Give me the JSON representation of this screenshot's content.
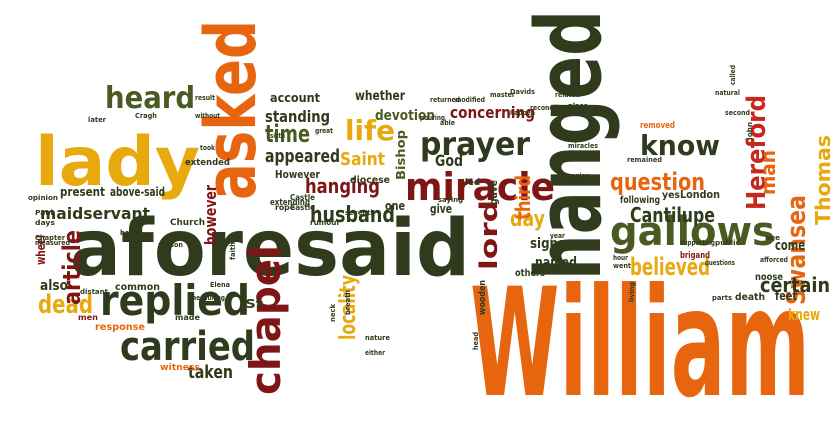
{
  "colors": {
    "orange": "#e8650f",
    "gold": "#e8a90e",
    "dark_green": "#2f3b1c",
    "olive": "#4a5a22",
    "dark_red": "#7e1616",
    "red": "#c8281b",
    "maroon": "#5a1010",
    "background": "#ffffff"
  },
  "words": [
    {
      "text": "William",
      "color": "orange",
      "vertical": false
    },
    {
      "text": "aforesaid",
      "color": "dark_green",
      "vertical": false
    },
    {
      "text": "hanged",
      "color": "dark_green",
      "vertical": true
    },
    {
      "text": "asked",
      "color": "orange",
      "vertical": true
    },
    {
      "text": "lady",
      "color": "gold",
      "vertical": false
    },
    {
      "text": "gallows",
      "color": "olive",
      "vertical": false
    },
    {
      "text": "replied",
      "color": "dark_green",
      "vertical": false
    },
    {
      "text": "carried",
      "color": "dark_green",
      "vertical": false
    },
    {
      "text": "chapel",
      "color": "dark_red",
      "vertical": true
    },
    {
      "text": "prayer",
      "color": "dark_green",
      "vertical": false
    },
    {
      "text": "miracle",
      "color": "dark_red",
      "vertical": false
    },
    {
      "text": "heard",
      "color": "olive",
      "vertical": false
    },
    {
      "text": "know",
      "color": "dark_green",
      "vertical": false
    },
    {
      "text": "question",
      "color": "orange",
      "vertical": false
    },
    {
      "text": "believed",
      "color": "gold",
      "vertical": false
    },
    {
      "text": "Hereford",
      "color": "red",
      "vertical": true
    },
    {
      "text": "Swansea",
      "color": "orange",
      "vertical": true
    },
    {
      "text": "Thomas",
      "color": "gold",
      "vertical": true
    },
    {
      "text": "husband",
      "color": "dark_green",
      "vertical": false
    },
    {
      "text": "hanging",
      "color": "dark_red",
      "vertical": false
    },
    {
      "text": "life",
      "color": "gold",
      "vertical": false
    },
    {
      "text": "time",
      "color": "olive",
      "vertical": false
    },
    {
      "text": "Saint",
      "color": "gold",
      "vertical": false
    },
    {
      "text": "dead",
      "color": "gold",
      "vertical": false
    },
    {
      "text": "article",
      "color": "dark_red",
      "vertical": true
    },
    {
      "text": "maidservant",
      "color": "dark_green",
      "vertical": false
    },
    {
      "text": "lord",
      "color": "dark_red",
      "vertical": true
    },
    {
      "text": "day",
      "color": "gold",
      "vertical": false
    },
    {
      "text": "third",
      "color": "orange",
      "vertical": true
    },
    {
      "text": "man",
      "color": "orange",
      "vertical": true
    },
    {
      "text": "certain",
      "color": "dark_green",
      "vertical": false
    },
    {
      "text": "Cantilupe",
      "color": "dark_green",
      "vertical": false
    },
    {
      "text": "knew",
      "color": "gold",
      "vertical": false
    },
    {
      "text": "locality",
      "color": "gold",
      "vertical": true
    },
    {
      "text": "taken",
      "color": "dark_green",
      "vertical": false
    },
    {
      "text": "appeared",
      "color": "dark_green",
      "vertical": false
    },
    {
      "text": "standing",
      "color": "dark_green",
      "vertical": false
    },
    {
      "text": "concerning",
      "color": "dark_red",
      "vertical": false
    },
    {
      "text": "devotion",
      "color": "olive",
      "vertical": false
    },
    {
      "text": "account",
      "color": "dark_green",
      "vertical": false
    },
    {
      "text": "God",
      "color": "dark_green",
      "vertical": false
    },
    {
      "text": "come",
      "color": "dark_green",
      "vertical": false
    },
    {
      "text": "named",
      "color": "dark_green",
      "vertical": false
    },
    {
      "text": "signs",
      "color": "dark_green",
      "vertical": false
    },
    {
      "text": "also",
      "color": "dark_green",
      "vertical": false
    },
    {
      "text": "present",
      "color": "dark_green",
      "vertical": false
    },
    {
      "text": "above-said",
      "color": "dark_green",
      "vertical": false
    },
    {
      "text": "however",
      "color": "dark_red",
      "vertical": true
    },
    {
      "text": "St",
      "color": "dark_green",
      "vertical": false
    },
    {
      "text": "London",
      "color": "dark_green",
      "vertical": false
    },
    {
      "text": "following",
      "color": "dark_green",
      "vertical": false
    },
    {
      "text": "yes",
      "color": "dark_green",
      "vertical": false
    },
    {
      "text": "whether",
      "color": "dark_green",
      "vertical": false
    },
    {
      "text": "wheel",
      "color": "dark_red",
      "vertical": false
    },
    {
      "text": "common",
      "color": "dark_green",
      "vertical": false
    },
    {
      "text": "response",
      "color": "orange",
      "vertical": false
    },
    {
      "text": "witness",
      "color": "orange",
      "vertical": false
    },
    {
      "text": "extended",
      "color": "dark_green",
      "vertical": false
    },
    {
      "text": "diocese",
      "color": "dark_green",
      "vertical": false
    },
    {
      "text": "Bishop",
      "color": "olive",
      "vertical": true
    },
    {
      "text": "one",
      "color": "dark_green",
      "vertical": false
    },
    {
      "text": "give",
      "color": "dark_green",
      "vertical": false
    },
    {
      "text": "others",
      "color": "dark_green",
      "vertical": false
    },
    {
      "text": "gave",
      "color": "dark_green",
      "vertical": true
    },
    {
      "text": "feet",
      "color": "dark_green",
      "vertical": false
    },
    {
      "text": "death",
      "color": "dark_green",
      "vertical": false
    },
    {
      "text": "noose",
      "color": "dark_green",
      "vertical": false
    },
    {
      "text": "However",
      "color": "dark_green",
      "vertical": false
    },
    {
      "text": "extending",
      "color": "dark_green",
      "vertical": false
    },
    {
      "text": "Church",
      "color": "dark_green",
      "vertical": false
    },
    {
      "text": "made",
      "color": "dark_green",
      "vertical": false
    },
    {
      "text": "men",
      "color": "dark_red",
      "vertical": false
    },
    {
      "text": "wooden",
      "color": "dark_green",
      "vertical": false
    },
    {
      "text": "Castle",
      "color": "dark_green",
      "vertical": false
    },
    {
      "text": "rope",
      "color": "dark_green",
      "vertical": false
    },
    {
      "text": "rumour",
      "color": "dark_green",
      "vertical": false
    },
    {
      "text": "seventh",
      "color": "dark_green",
      "vertical": false
    },
    {
      "text": "saying",
      "color": "dark_green",
      "vertical": false
    },
    {
      "text": "Cragh",
      "color": "dark_green",
      "vertical": false
    },
    {
      "text": "later",
      "color": "dark_green",
      "vertical": false
    },
    {
      "text": "measured",
      "color": "dark_green",
      "vertical": false
    },
    {
      "text": "measuring",
      "color": "dark_green",
      "vertical": false
    },
    {
      "text": "opinion",
      "color": "dark_green",
      "vertical": false
    },
    {
      "text": "days",
      "color": "dark_green",
      "vertical": false
    },
    {
      "text": "Paul",
      "color": "dark_green",
      "vertical": false
    },
    {
      "text": "John",
      "color": "dark_green",
      "vertical": false
    },
    {
      "text": "brigand",
      "color": "dark_red",
      "vertical": false
    },
    {
      "text": "public",
      "color": "dark_green",
      "vertical": false
    },
    {
      "text": "supporting",
      "color": "dark_green",
      "vertical": false
    },
    {
      "text": "questions",
      "color": "dark_green",
      "vertical": false
    },
    {
      "text": "afforced",
      "color": "dark_green",
      "vertical": false
    },
    {
      "text": "age",
      "color": "dark_green",
      "vertical": false
    },
    {
      "text": "second",
      "color": "dark_green",
      "vertical": false
    },
    {
      "text": "natural",
      "color": "dark_green",
      "vertical": false
    },
    {
      "text": "removed",
      "color": "orange",
      "vertical": false
    },
    {
      "text": "remained",
      "color": "dark_green",
      "vertical": false
    },
    {
      "text": "miracles",
      "color": "dark_green",
      "vertical": false
    },
    {
      "text": "region",
      "color": "dark_green",
      "vertical": false
    },
    {
      "text": "Davids",
      "color": "dark_green",
      "vertical": false
    },
    {
      "text": "master",
      "color": "dark_green",
      "vertical": false
    },
    {
      "text": "related",
      "color": "dark_green",
      "vertical": false
    },
    {
      "text": "reconciliated",
      "color": "dark_green",
      "vertical": false
    },
    {
      "text": "place",
      "color": "dark_green",
      "vertical": false
    },
    {
      "text": "modified",
      "color": "dark_green",
      "vertical": false
    },
    {
      "text": "returned",
      "color": "dark_green",
      "vertical": false
    },
    {
      "text": "happen",
      "color": "dark_green",
      "vertical": false
    },
    {
      "text": "pouring",
      "color": "dark_green",
      "vertical": false
    },
    {
      "text": "led",
      "color": "dark_green",
      "vertical": false
    },
    {
      "text": "great",
      "color": "dark_green",
      "vertical": false
    },
    {
      "text": "took",
      "color": "dark_green",
      "vertical": false
    },
    {
      "text": "sixth",
      "color": "dark_green",
      "vertical": false
    },
    {
      "text": "without",
      "color": "dark_green",
      "vertical": false
    },
    {
      "text": "result",
      "color": "dark_green",
      "vertical": false
    },
    {
      "text": "neck",
      "color": "dark_green",
      "vertical": false
    },
    {
      "text": "breath",
      "color": "dark_green",
      "vertical": false
    },
    {
      "text": "nature",
      "color": "dark_green",
      "vertical": false
    },
    {
      "text": "either",
      "color": "dark_green",
      "vertical": false
    },
    {
      "text": "back",
      "color": "dark_green",
      "vertical": false
    },
    {
      "text": "person",
      "color": "dark_green",
      "vertical": false
    },
    {
      "text": "faith",
      "color": "dark_green",
      "vertical": false
    },
    {
      "text": "distant",
      "color": "dark_green",
      "vertical": false
    },
    {
      "text": "Chapter",
      "color": "dark_green",
      "vertical": false
    },
    {
      "text": "Elena",
      "color": "dark_green",
      "vertical": false
    },
    {
      "text": "hour",
      "color": "dark_green",
      "vertical": false
    },
    {
      "text": "went",
      "color": "dark_green",
      "vertical": false
    },
    {
      "text": "living",
      "color": "dark_green",
      "vertical": false
    },
    {
      "text": "parts",
      "color": "dark_green",
      "vertical": false
    },
    {
      "text": "head",
      "color": "dark_green",
      "vertical": false
    },
    {
      "text": "year",
      "color": "dark_green",
      "vertical": false
    },
    {
      "text": "called",
      "color": "dark_green",
      "vertical": false
    },
    {
      "text": "able",
      "color": "dark_green",
      "vertical": false
    },
    {
      "text": "Castle",
      "color": "dark_green",
      "vertical": false
    }
  ]
}
